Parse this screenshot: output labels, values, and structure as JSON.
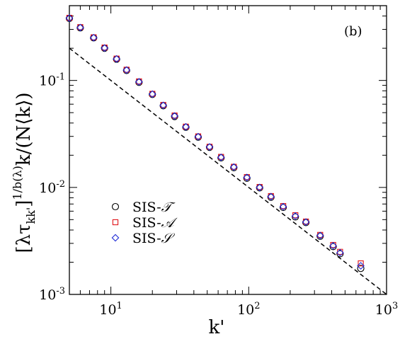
{
  "chart_data": {
    "type": "scatter",
    "x_scale": "log",
    "y_scale": "log",
    "xlim": [
      5,
      1000
    ],
    "ylim": [
      0.001,
      0.5
    ],
    "x_ticks": [
      {
        "value": 10,
        "base": "10",
        "exp": "1"
      },
      {
        "value": 100,
        "base": "10",
        "exp": "2"
      },
      {
        "value": 1000,
        "base": "10",
        "exp": "3"
      }
    ],
    "y_ticks": [
      {
        "value": 0.001,
        "base": "10",
        "exp": "-3"
      },
      {
        "value": 0.01,
        "base": "10",
        "exp": "-2"
      },
      {
        "value": 0.1,
        "base": "10",
        "exp": "-1"
      }
    ],
    "xlabel": "k'",
    "ylabel": "[λτkk']1/b(λ)k/(N⟨k⟩)",
    "ylabel_parts": {
      "open": "[λτ",
      "sub1": "kk'",
      "close": "]",
      "sup": "1/b(λ)",
      "rest": "k/(N⟨k⟩)"
    },
    "panel_label": "(b)",
    "legend_position": "left-lower",
    "series": [
      {
        "name": "SIS-𝒯",
        "legend_label": "SIS-",
        "legend_script": "𝒯",
        "marker": "circle",
        "color": "#000000",
        "x": [
          5,
          6,
          7.5,
          9,
          11,
          13,
          16,
          20,
          24,
          29,
          35,
          43,
          52,
          63,
          78,
          97,
          120,
          145,
          178,
          218,
          260,
          330,
          410,
          460,
          650
        ],
        "y": [
          0.38,
          0.31,
          0.25,
          0.2,
          0.158,
          0.124,
          0.096,
          0.074,
          0.058,
          0.046,
          0.0365,
          0.0295,
          0.0237,
          0.0189,
          0.0153,
          0.0122,
          0.0099,
          0.0081,
          0.0065,
          0.0053,
          0.0047,
          0.0035,
          0.0028,
          0.0024,
          0.00175
        ]
      },
      {
        "name": "SIS-𝒜",
        "legend_label": "SIS-",
        "legend_script": "𝒜",
        "marker": "square",
        "color": "#e0151b",
        "x": [
          5,
          6,
          7.5,
          9,
          11,
          13,
          16,
          20,
          24,
          29,
          35,
          43,
          52,
          63,
          78,
          97,
          120,
          145,
          178,
          218,
          260,
          330,
          410,
          460,
          650
        ],
        "y": [
          0.385,
          0.315,
          0.253,
          0.203,
          0.16,
          0.126,
          0.098,
          0.075,
          0.059,
          0.047,
          0.037,
          0.03,
          0.024,
          0.0193,
          0.0156,
          0.0125,
          0.0101,
          0.0083,
          0.0067,
          0.0055,
          0.0048,
          0.0036,
          0.0029,
          0.0025,
          0.00195
        ]
      },
      {
        "name": "SIS-𝒮",
        "legend_label": "SIS-",
        "legend_script": "𝒮",
        "marker": "diamond",
        "color": "#1f2bd6",
        "x": [
          5,
          6,
          7.5,
          9,
          11,
          13,
          16,
          20,
          24,
          29,
          35,
          43,
          52,
          63,
          78,
          97,
          120,
          145,
          178,
          218,
          260,
          330,
          410,
          460,
          650
        ],
        "y": [
          0.382,
          0.312,
          0.251,
          0.201,
          0.159,
          0.125,
          0.097,
          0.0745,
          0.0585,
          0.0465,
          0.0368,
          0.0298,
          0.0239,
          0.0191,
          0.0155,
          0.0124,
          0.01,
          0.0082,
          0.0066,
          0.0054,
          0.00475,
          0.00355,
          0.00285,
          0.00245,
          0.00185
        ]
      }
    ],
    "reference_line": {
      "style": "dashed",
      "color": "#000000",
      "x": [
        5,
        1000
      ],
      "y": [
        0.2,
        0.001
      ]
    }
  }
}
